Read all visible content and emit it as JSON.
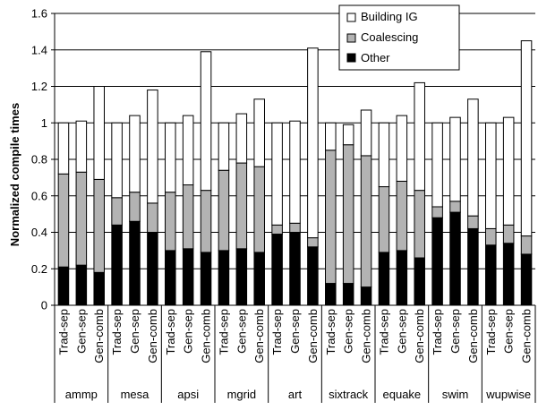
{
  "chart_data": {
    "type": "bar",
    "stacked": true,
    "ylabel": "Normalized compile times",
    "ylim": [
      0,
      1.6
    ],
    "yticks": [
      "0",
      "0.2",
      "0.4",
      "0.6",
      "0.8",
      "1",
      "1.2",
      "1.4",
      "1.6"
    ],
    "ytick_values": [
      0,
      0.2,
      0.4,
      0.6,
      0.8,
      1.0,
      1.2,
      1.4,
      1.6
    ],
    "grid": "horizontal",
    "legend_position": "top-right",
    "series_colors": [
      "#000000",
      "#b3b3b3",
      "#ffffff"
    ],
    "bar_labels": [
      "Trad-sep",
      "Gen-sep",
      "Gen-comb"
    ],
    "benchmarks": [
      "ammp",
      "mesa",
      "apsi",
      "mgrid",
      "art",
      "sixtrack",
      "equake",
      "swim",
      "wupwise"
    ],
    "series": [
      {
        "name": "Other",
        "values": [
          0.21,
          0.22,
          0.18,
          0.44,
          0.46,
          0.4,
          0.3,
          0.31,
          0.29,
          0.3,
          0.31,
          0.29,
          0.39,
          0.4,
          0.32,
          0.12,
          0.12,
          0.1,
          0.29,
          0.3,
          0.26,
          0.48,
          0.51,
          0.42,
          0.33,
          0.34,
          0.28
        ]
      },
      {
        "name": "Coalescing",
        "values": [
          0.51,
          0.51,
          0.51,
          0.15,
          0.16,
          0.16,
          0.32,
          0.35,
          0.34,
          0.44,
          0.47,
          0.47,
          0.05,
          0.05,
          0.05,
          0.73,
          0.76,
          0.72,
          0.36,
          0.38,
          0.37,
          0.06,
          0.06,
          0.07,
          0.09,
          0.1,
          0.1
        ]
      },
      {
        "name": "Building IG",
        "values": [
          0.28,
          0.28,
          0.51,
          0.41,
          0.42,
          0.62,
          0.38,
          0.38,
          0.76,
          0.26,
          0.27,
          0.37,
          0.56,
          0.56,
          1.04,
          0.15,
          0.11,
          0.25,
          0.35,
          0.36,
          0.59,
          0.46,
          0.46,
          0.64,
          0.58,
          0.59,
          1.07
        ]
      }
    ],
    "legend_order": [
      "Building IG",
      "Coalescing",
      "Other"
    ]
  }
}
